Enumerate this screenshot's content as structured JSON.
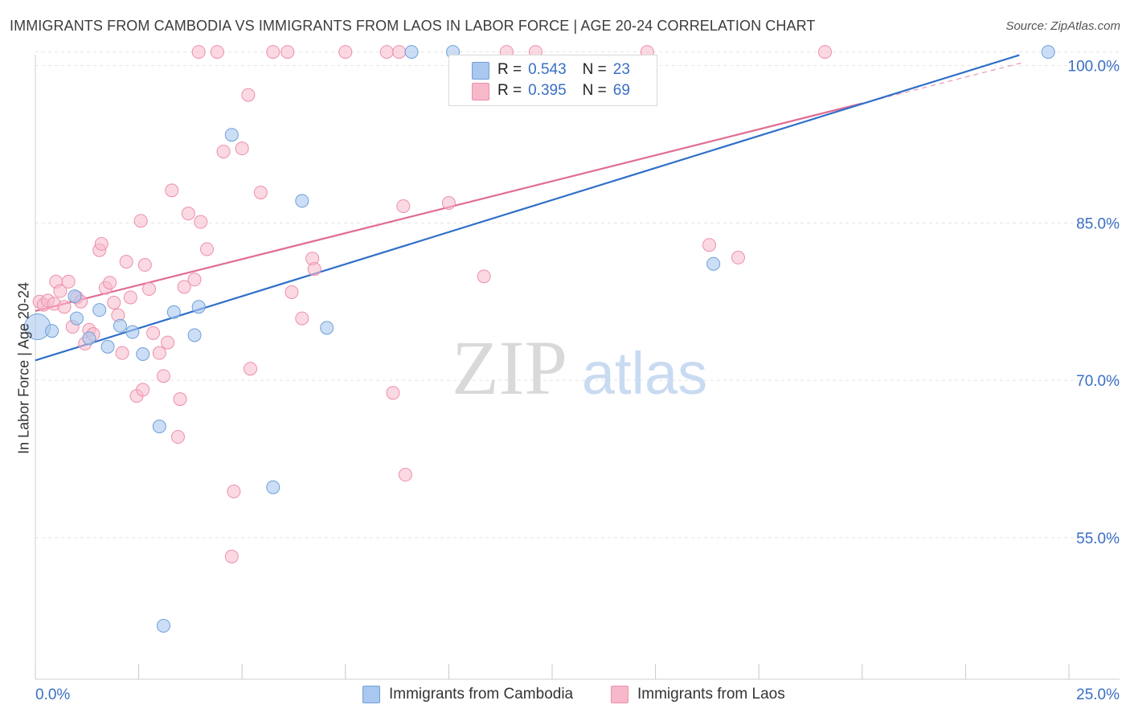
{
  "header": {
    "title": "IMMIGRANTS FROM CAMBODIA VS IMMIGRANTS FROM LAOS IN LABOR FORCE | AGE 20-24 CORRELATION CHART",
    "source": "Source: ZipAtlas.com"
  },
  "watermark": {
    "zip": "ZIP",
    "atlas": "atlas"
  },
  "legend": {
    "cambodia": {
      "r_label": "R =",
      "r_value": "0.543",
      "n_label": "N =",
      "n_value": "23"
    },
    "laos": {
      "r_label": "R =",
      "r_value": "0.395",
      "n_label": "N =",
      "n_value": "69"
    }
  },
  "colors": {
    "cambodia_fill": "#a9c8f0",
    "cambodia_stroke": "#6f9fd8",
    "cambodia_line": "#2f6fc9",
    "laos_fill": "#f7b9ca",
    "laos_stroke": "#ec8fab",
    "laos_line": "#e06c94",
    "value_text": "#3a6fc4",
    "grid": "#e4e4e4"
  },
  "chart_data": {
    "type": "scatter",
    "title": "IMMIGRANTS FROM CAMBODIA VS IMMIGRANTS FROM LAOS IN LABOR FORCE | AGE 20-24 CORRELATION CHART",
    "xlabel": "",
    "ylabel": "In Labor Force | Age 20-24",
    "xlim": [
      0,
      25
    ],
    "ylim": [
      41.5,
      101.5
    ],
    "x_tick_labels": [
      "0.0%",
      "25.0%"
    ],
    "y_ticks": [
      55,
      70,
      85,
      100
    ],
    "y_tick_labels": [
      "55.0%",
      "70.0%",
      "85.0%",
      "100.0%"
    ],
    "grid": true,
    "legend_position": "top-center",
    "series": [
      {
        "name": "Immigrants from Cambodia",
        "r": 0.543,
        "n": 23,
        "trend": {
          "x": [
            0,
            23.8
          ],
          "y": [
            71.9,
            101.0
          ]
        },
        "points": [
          [
            0.05,
            75.1
          ],
          [
            0.4,
            74.7
          ],
          [
            0.95,
            78.0
          ],
          [
            1.0,
            75.9
          ],
          [
            1.3,
            74.0
          ],
          [
            1.55,
            76.7
          ],
          [
            1.75,
            73.2
          ],
          [
            2.05,
            75.2
          ],
          [
            2.35,
            74.6
          ],
          [
            2.6,
            72.5
          ],
          [
            3.0,
            65.6
          ],
          [
            3.1,
            46.6
          ],
          [
            3.35,
            76.5
          ],
          [
            3.85,
            74.3
          ],
          [
            3.95,
            77.0
          ],
          [
            4.75,
            93.4
          ],
          [
            5.75,
            59.8
          ],
          [
            6.45,
            87.1
          ],
          [
            7.05,
            75.0
          ],
          [
            9.1,
            100.0
          ],
          [
            10.1,
            100.0
          ],
          [
            16.4,
            81.1
          ],
          [
            24.5,
            100.0
          ]
        ]
      },
      {
        "name": "Immigrants from Laos",
        "r": 0.395,
        "n": 69,
        "trend": {
          "x": [
            0,
            20.0
          ],
          "y": [
            76.6,
            96.4
          ]
        },
        "trend_dashed_extension": {
          "x": [
            20.0,
            23.9
          ],
          "y": [
            96.4,
            100.3
          ]
        },
        "points": [
          [
            0.1,
            77.5
          ],
          [
            0.2,
            77.2
          ],
          [
            0.3,
            77.6
          ],
          [
            0.45,
            77.3
          ],
          [
            0.5,
            79.4
          ],
          [
            0.6,
            78.5
          ],
          [
            0.7,
            77.0
          ],
          [
            0.8,
            79.4
          ],
          [
            0.9,
            75.1
          ],
          [
            1.0,
            77.9
          ],
          [
            1.1,
            77.5
          ],
          [
            1.2,
            73.5
          ],
          [
            1.3,
            74.8
          ],
          [
            1.4,
            74.4
          ],
          [
            1.55,
            82.4
          ],
          [
            1.6,
            83.0
          ],
          [
            1.7,
            78.8
          ],
          [
            1.8,
            79.3
          ],
          [
            1.9,
            77.4
          ],
          [
            2.0,
            76.2
          ],
          [
            2.1,
            72.6
          ],
          [
            2.2,
            81.3
          ],
          [
            2.3,
            77.9
          ],
          [
            2.45,
            68.5
          ],
          [
            2.55,
            85.2
          ],
          [
            2.6,
            69.1
          ],
          [
            2.65,
            81.0
          ],
          [
            2.75,
            78.7
          ],
          [
            2.85,
            74.5
          ],
          [
            3.0,
            72.6
          ],
          [
            3.1,
            70.4
          ],
          [
            3.2,
            73.6
          ],
          [
            3.3,
            88.1
          ],
          [
            3.45,
            64.6
          ],
          [
            3.5,
            68.2
          ],
          [
            3.6,
            78.9
          ],
          [
            3.7,
            85.9
          ],
          [
            3.85,
            79.6
          ],
          [
            4.0,
            85.1
          ],
          [
            4.15,
            82.5
          ],
          [
            3.95,
            100.0
          ],
          [
            4.4,
            100.0
          ],
          [
            4.55,
            91.8
          ],
          [
            4.75,
            53.2
          ],
          [
            4.8,
            59.4
          ],
          [
            5.0,
            92.1
          ],
          [
            5.15,
            97.2
          ],
          [
            5.2,
            71.1
          ],
          [
            5.45,
            87.9
          ],
          [
            5.75,
            100.0
          ],
          [
            6.1,
            100.0
          ],
          [
            6.2,
            78.4
          ],
          [
            6.45,
            75.9
          ],
          [
            6.7,
            81.6
          ],
          [
            6.75,
            80.6
          ],
          [
            7.5,
            100.0
          ],
          [
            8.5,
            100.0
          ],
          [
            8.65,
            68.8
          ],
          [
            8.8,
            100.0
          ],
          [
            8.9,
            86.6
          ],
          [
            8.95,
            61.0
          ],
          [
            10.0,
            86.9
          ],
          [
            10.85,
            79.9
          ],
          [
            11.4,
            100.0
          ],
          [
            12.1,
            100.0
          ],
          [
            14.8,
            100.0
          ],
          [
            16.3,
            82.9
          ],
          [
            17.0,
            81.7
          ],
          [
            19.1,
            100.0
          ]
        ]
      }
    ]
  },
  "bottom_legend": {
    "cambodia": "Immigrants from Cambodia",
    "laos": "Immigrants from Laos"
  }
}
